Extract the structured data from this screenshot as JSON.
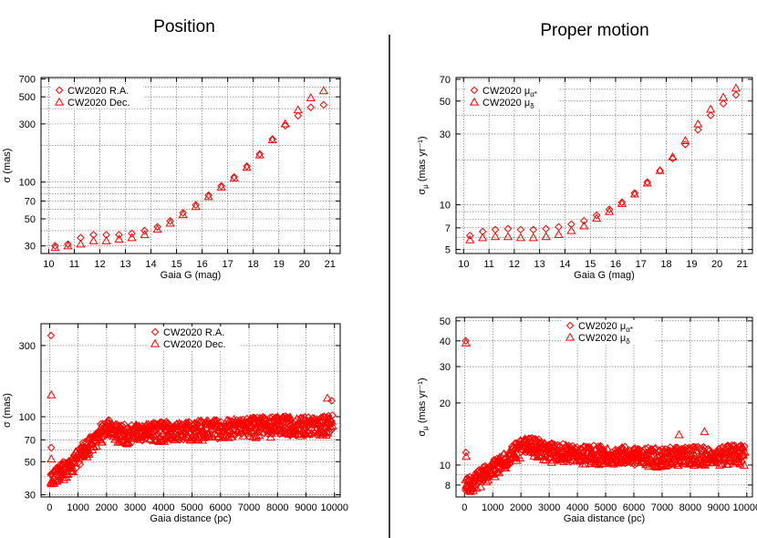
{
  "column_titles": {
    "left": "Position",
    "right": "Proper motion"
  },
  "colors": {
    "marker": "#ff0000",
    "axis": "#000000",
    "grid": "#666666"
  },
  "chart_data": [
    {
      "id": "pos-mag",
      "type": "scatter",
      "xscale": "linear",
      "yscale": "log",
      "xlim": [
        9.7,
        21.4
      ],
      "ylim": [
        26,
        720
      ],
      "xticks": [
        10,
        11,
        12,
        13,
        14,
        15,
        16,
        17,
        18,
        19,
        20,
        21
      ],
      "yticks": [
        30,
        50,
        70,
        100,
        300,
        500,
        700
      ],
      "ygrid": [
        30,
        40,
        50,
        60,
        70,
        80,
        90,
        100,
        200,
        300,
        400,
        500,
        600,
        700
      ],
      "xlabel": "Gaia G (mag)",
      "ylabel_main": "σ",
      "ylabel_sub": "",
      "ylabel_unit": " (mas)",
      "legend": "top-left",
      "series": [
        {
          "name": "CW2020 R.A.",
          "marker": "diamond",
          "x": [
            10.25,
            10.75,
            11.25,
            11.75,
            12.25,
            12.75,
            13.25,
            13.75,
            14.25,
            14.75,
            15.25,
            15.75,
            16.25,
            16.75,
            17.25,
            17.75,
            18.25,
            18.75,
            19.25,
            19.75,
            20.25,
            20.75
          ],
          "y": [
            30,
            31,
            35,
            37,
            37,
            37,
            38,
            40,
            43,
            48,
            56,
            65,
            78,
            93,
            110,
            135,
            170,
            225,
            290,
            350,
            410,
            430
          ]
        },
        {
          "name": "CW2020 Dec.",
          "marker": "triangle",
          "x": [
            10.25,
            10.75,
            11.25,
            11.75,
            12.25,
            12.75,
            13.25,
            13.75,
            14.25,
            14.75,
            15.25,
            15.75,
            16.25,
            16.75,
            17.25,
            17.75,
            18.25,
            18.75,
            19.25,
            19.75,
            20.25,
            20.75
          ],
          "y": [
            29,
            30,
            31,
            33,
            33,
            34,
            35,
            37,
            41,
            46,
            54,
            63,
            76,
            91,
            108,
            132,
            167,
            222,
            300,
            390,
            490,
            560
          ]
        }
      ]
    },
    {
      "id": "pm-mag",
      "type": "scatter",
      "xscale": "linear",
      "yscale": "log",
      "xlim": [
        9.7,
        21.4
      ],
      "ylim": [
        4.7,
        72
      ],
      "xticks": [
        10,
        11,
        12,
        13,
        14,
        15,
        16,
        17,
        18,
        19,
        20,
        21
      ],
      "yticks": [
        5,
        7,
        10,
        30,
        50,
        70
      ],
      "ygrid": [
        5,
        6,
        7,
        8,
        9,
        10,
        20,
        30,
        40,
        50,
        60,
        70
      ],
      "xlabel": "Gaia G (mag)",
      "ylabel_main": "σ",
      "ylabel_sub": "μ",
      "ylabel_unit": " (mas yr⁻¹)",
      "legend": "top-left",
      "series": [
        {
          "name": "CW2020 μα*",
          "marker": "diamond",
          "x": [
            10.25,
            10.75,
            11.25,
            11.75,
            12.25,
            12.75,
            13.25,
            13.75,
            14.25,
            14.75,
            15.25,
            15.75,
            16.25,
            16.75,
            17.25,
            17.75,
            18.25,
            18.75,
            19.25,
            19.75,
            20.25,
            20.75
          ],
          "y": [
            6.2,
            6.6,
            6.8,
            6.9,
            6.8,
            6.8,
            6.9,
            7.1,
            7.4,
            7.8,
            8.5,
            9.3,
            10.4,
            12.0,
            14.2,
            17.0,
            20.5,
            25.5,
            32.0,
            40.0,
            48.0,
            55.0
          ]
        },
        {
          "name": "CW2020 μδ",
          "marker": "triangle",
          "x": [
            10.25,
            10.75,
            11.25,
            11.75,
            12.25,
            12.75,
            13.25,
            13.75,
            14.25,
            14.75,
            15.25,
            15.75,
            16.25,
            16.75,
            17.25,
            17.75,
            18.25,
            18.75,
            19.25,
            19.75,
            20.25,
            20.75
          ],
          "y": [
            5.8,
            6.0,
            6.1,
            6.1,
            6.0,
            6.0,
            6.1,
            6.3,
            6.7,
            7.2,
            8.1,
            9.0,
            10.2,
            11.8,
            14.0,
            17.0,
            21.0,
            27.0,
            35.0,
            44.0,
            53.0,
            61.0
          ]
        }
      ]
    },
    {
      "id": "pos-dist",
      "type": "scatter",
      "xscale": "linear",
      "yscale": "log",
      "xlim": [
        -300,
        10200
      ],
      "ylim": [
        29,
        420
      ],
      "xticks": [
        0,
        1000,
        2000,
        3000,
        4000,
        5000,
        6000,
        7000,
        8000,
        9000,
        10000
      ],
      "yticks": [
        30,
        50,
        70,
        100,
        300
      ],
      "ygrid": [
        30,
        40,
        50,
        60,
        70,
        80,
        90,
        100,
        200,
        300
      ],
      "xlabel": "Gaia distance (pc)",
      "ylabel_main": "σ",
      "ylabel_sub": "",
      "ylabel_unit": " (mas)",
      "legend": "top-center",
      "trend": {
        "knots_x": [
          50,
          200,
          500,
          1000,
          1500,
          2000,
          2500,
          4000,
          6000,
          8000,
          10000
        ],
        "knots_y": [
          39,
          40,
          44,
          53,
          68,
          85,
          77,
          80,
          83,
          87,
          88
        ],
        "spread_lo": 0.86,
        "spread_hi": 1.14,
        "spread_grow": 0.12
      },
      "outliers": [
        {
          "series": 0,
          "x": 50,
          "y": 350
        },
        {
          "series": 1,
          "x": 60,
          "y": 140
        },
        {
          "series": 0,
          "x": 60,
          "y": 62
        },
        {
          "series": 1,
          "x": 60,
          "y": 52
        },
        {
          "series": 1,
          "x": 9750,
          "y": 133
        },
        {
          "series": 0,
          "x": 9900,
          "y": 128
        }
      ],
      "series": [
        {
          "name": "CW2020 R.A.",
          "marker": "diamond"
        },
        {
          "name": "CW2020 Dec.",
          "marker": "triangle"
        }
      ]
    },
    {
      "id": "pm-dist",
      "type": "scatter",
      "xscale": "linear",
      "yscale": "log",
      "xlim": [
        -300,
        10200
      ],
      "ylim": [
        7.0,
        52
      ],
      "xticks": [
        0,
        1000,
        2000,
        3000,
        4000,
        5000,
        6000,
        7000,
        8000,
        9000,
        10000
      ],
      "yticks": [
        8,
        10,
        20,
        30,
        40,
        50
      ],
      "ygrid": [
        8,
        9,
        10,
        20,
        30,
        40,
        50
      ],
      "xlabel": "Gaia distance (pc)",
      "ylabel_main": "σ",
      "ylabel_sub": "μ",
      "ylabel_unit": " (mas yr⁻¹)",
      "legend": "top-center",
      "trend": {
        "knots_x": [
          50,
          200,
          500,
          1000,
          1500,
          2000,
          2300,
          3000,
          5000,
          7000,
          10000
        ],
        "knots_y": [
          8.0,
          8.1,
          8.6,
          9.6,
          10.8,
          12.2,
          12.6,
          11.6,
          11.2,
          11.0,
          11.3
        ],
        "spread_lo": 0.9,
        "spread_hi": 1.09,
        "spread_grow": 0.1
      },
      "outliers": [
        {
          "series": 0,
          "x": 40,
          "y": 40
        },
        {
          "series": 1,
          "x": 50,
          "y": 39
        },
        {
          "series": 0,
          "x": 50,
          "y": 11.5
        },
        {
          "series": 1,
          "x": 60,
          "y": 11.0
        },
        {
          "series": 1,
          "x": 8500,
          "y": 14.5
        },
        {
          "series": 1,
          "x": 7600,
          "y": 14.0
        }
      ],
      "series": [
        {
          "name": "CW2020 μα*",
          "marker": "diamond"
        },
        {
          "name": "CW2020 μδ",
          "marker": "triangle"
        }
      ]
    }
  ]
}
